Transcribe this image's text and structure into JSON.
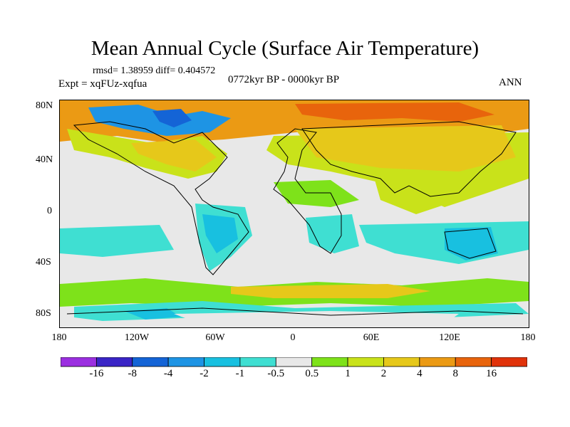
{
  "title": "Mean Annual Cycle (Surface Air Temperature)",
  "stats": "rmsd= 1.38959  diff= 0.404572",
  "experiment": "Expt = xqFUz-xqfua",
  "period": "0772kyr BP - 0000kyr BP",
  "season": "ANN",
  "lat_ticks": [
    "80N",
    "40N",
    "0",
    "40S",
    "80S"
  ],
  "lon_ticks": [
    "180",
    "120W",
    "60W",
    "0",
    "60E",
    "120E",
    "180"
  ],
  "colorbar": {
    "labels": [
      "-16",
      "-8",
      "-4",
      "-2",
      "-1",
      "-0.5",
      "0.5",
      "1",
      "2",
      "4",
      "8",
      "16"
    ],
    "colors": [
      "#9b2fe0",
      "#3a25c6",
      "#1464d6",
      "#1e94e4",
      "#18c0e0",
      "#3fdfd2",
      "#e8e8e8",
      "#7ee21a",
      "#c9e21a",
      "#e6c81a",
      "#eb9a14",
      "#e8640c",
      "#e0320a"
    ]
  }
}
